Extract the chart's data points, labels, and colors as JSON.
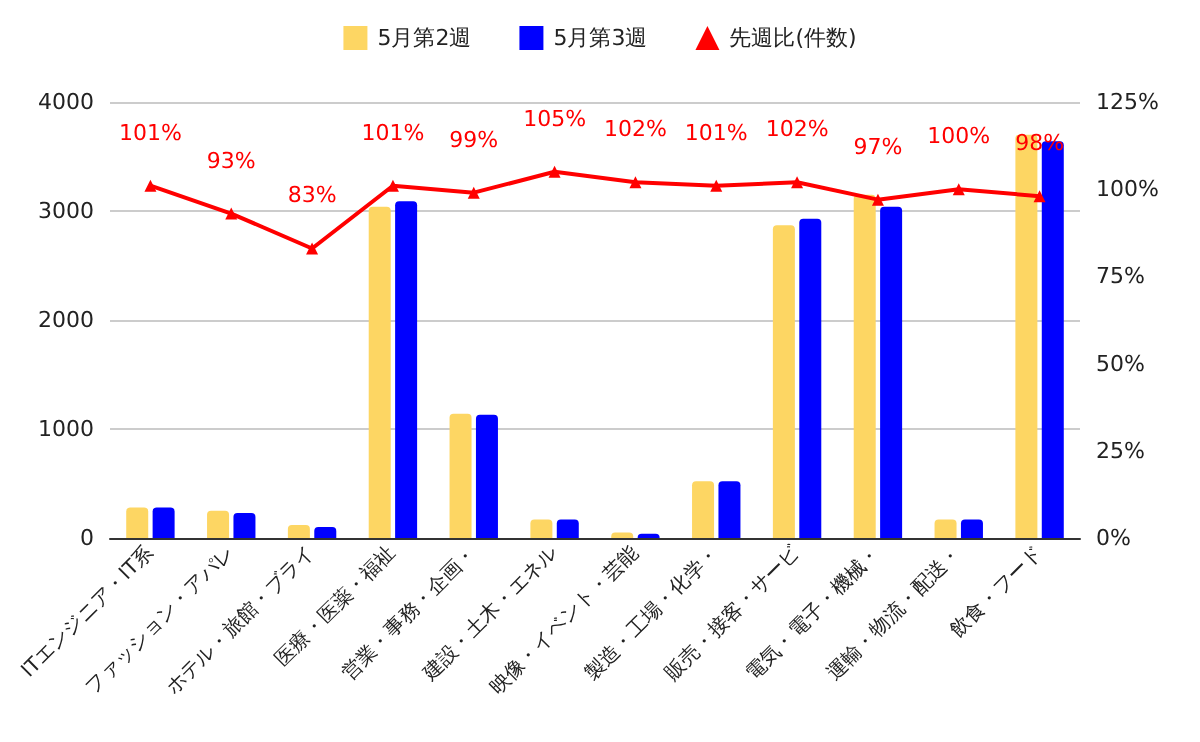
{
  "chart_data": {
    "type": "bar",
    "categories": [
      "ITエンジニア・IT系",
      "ファッション・アパレ",
      "ホテル・旅館・ブライ",
      "医療・医薬・福祉",
      "営業・事務・企画・",
      "建設・土木・エネル",
      "映像・イベント・芸能",
      "製造・工場・化学・",
      "販売・接客・サービ",
      "電気・電子・機械・",
      "運輸・物流・配送・",
      "飲食・フード"
    ],
    "series": [
      {
        "name": "5月第2週",
        "color": "#fdd663",
        "values": [
          280,
          250,
          120,
          3040,
          1140,
          170,
          50,
          520,
          2870,
          3150,
          170,
          3700
        ]
      },
      {
        "name": "5月第3週",
        "color": "#0000ff",
        "values": [
          280,
          230,
          100,
          3090,
          1130,
          170,
          40,
          520,
          2930,
          3040,
          170,
          3640
        ]
      },
      {
        "name": "先週比(件数)",
        "type": "line",
        "axis": "y2",
        "color": "#ff0000",
        "marker": "triangle",
        "values": [
          101,
          93,
          83,
          101,
          99,
          105,
          102,
          101,
          102,
          97,
          100,
          98
        ],
        "value_labels": [
          "101%",
          "93%",
          "83%",
          "101%",
          "99%",
          "105%",
          "102%",
          "101%",
          "102%",
          "97%",
          "100%",
          "98%"
        ]
      }
    ],
    "ylim": [
      0,
      4000
    ],
    "yticks": [
      0,
      1000,
      2000,
      3000,
      4000
    ],
    "y2lim": [
      0,
      125
    ],
    "y2ticks": [
      {
        "value": 0,
        "label": "0%"
      },
      {
        "value": 25,
        "label": "25%"
      },
      {
        "value": 50,
        "label": "50%"
      },
      {
        "value": 75,
        "label": "75%"
      },
      {
        "value": 100,
        "label": "100%"
      },
      {
        "value": 125,
        "label": "125%"
      }
    ],
    "grid": "y",
    "legend": "top"
  }
}
